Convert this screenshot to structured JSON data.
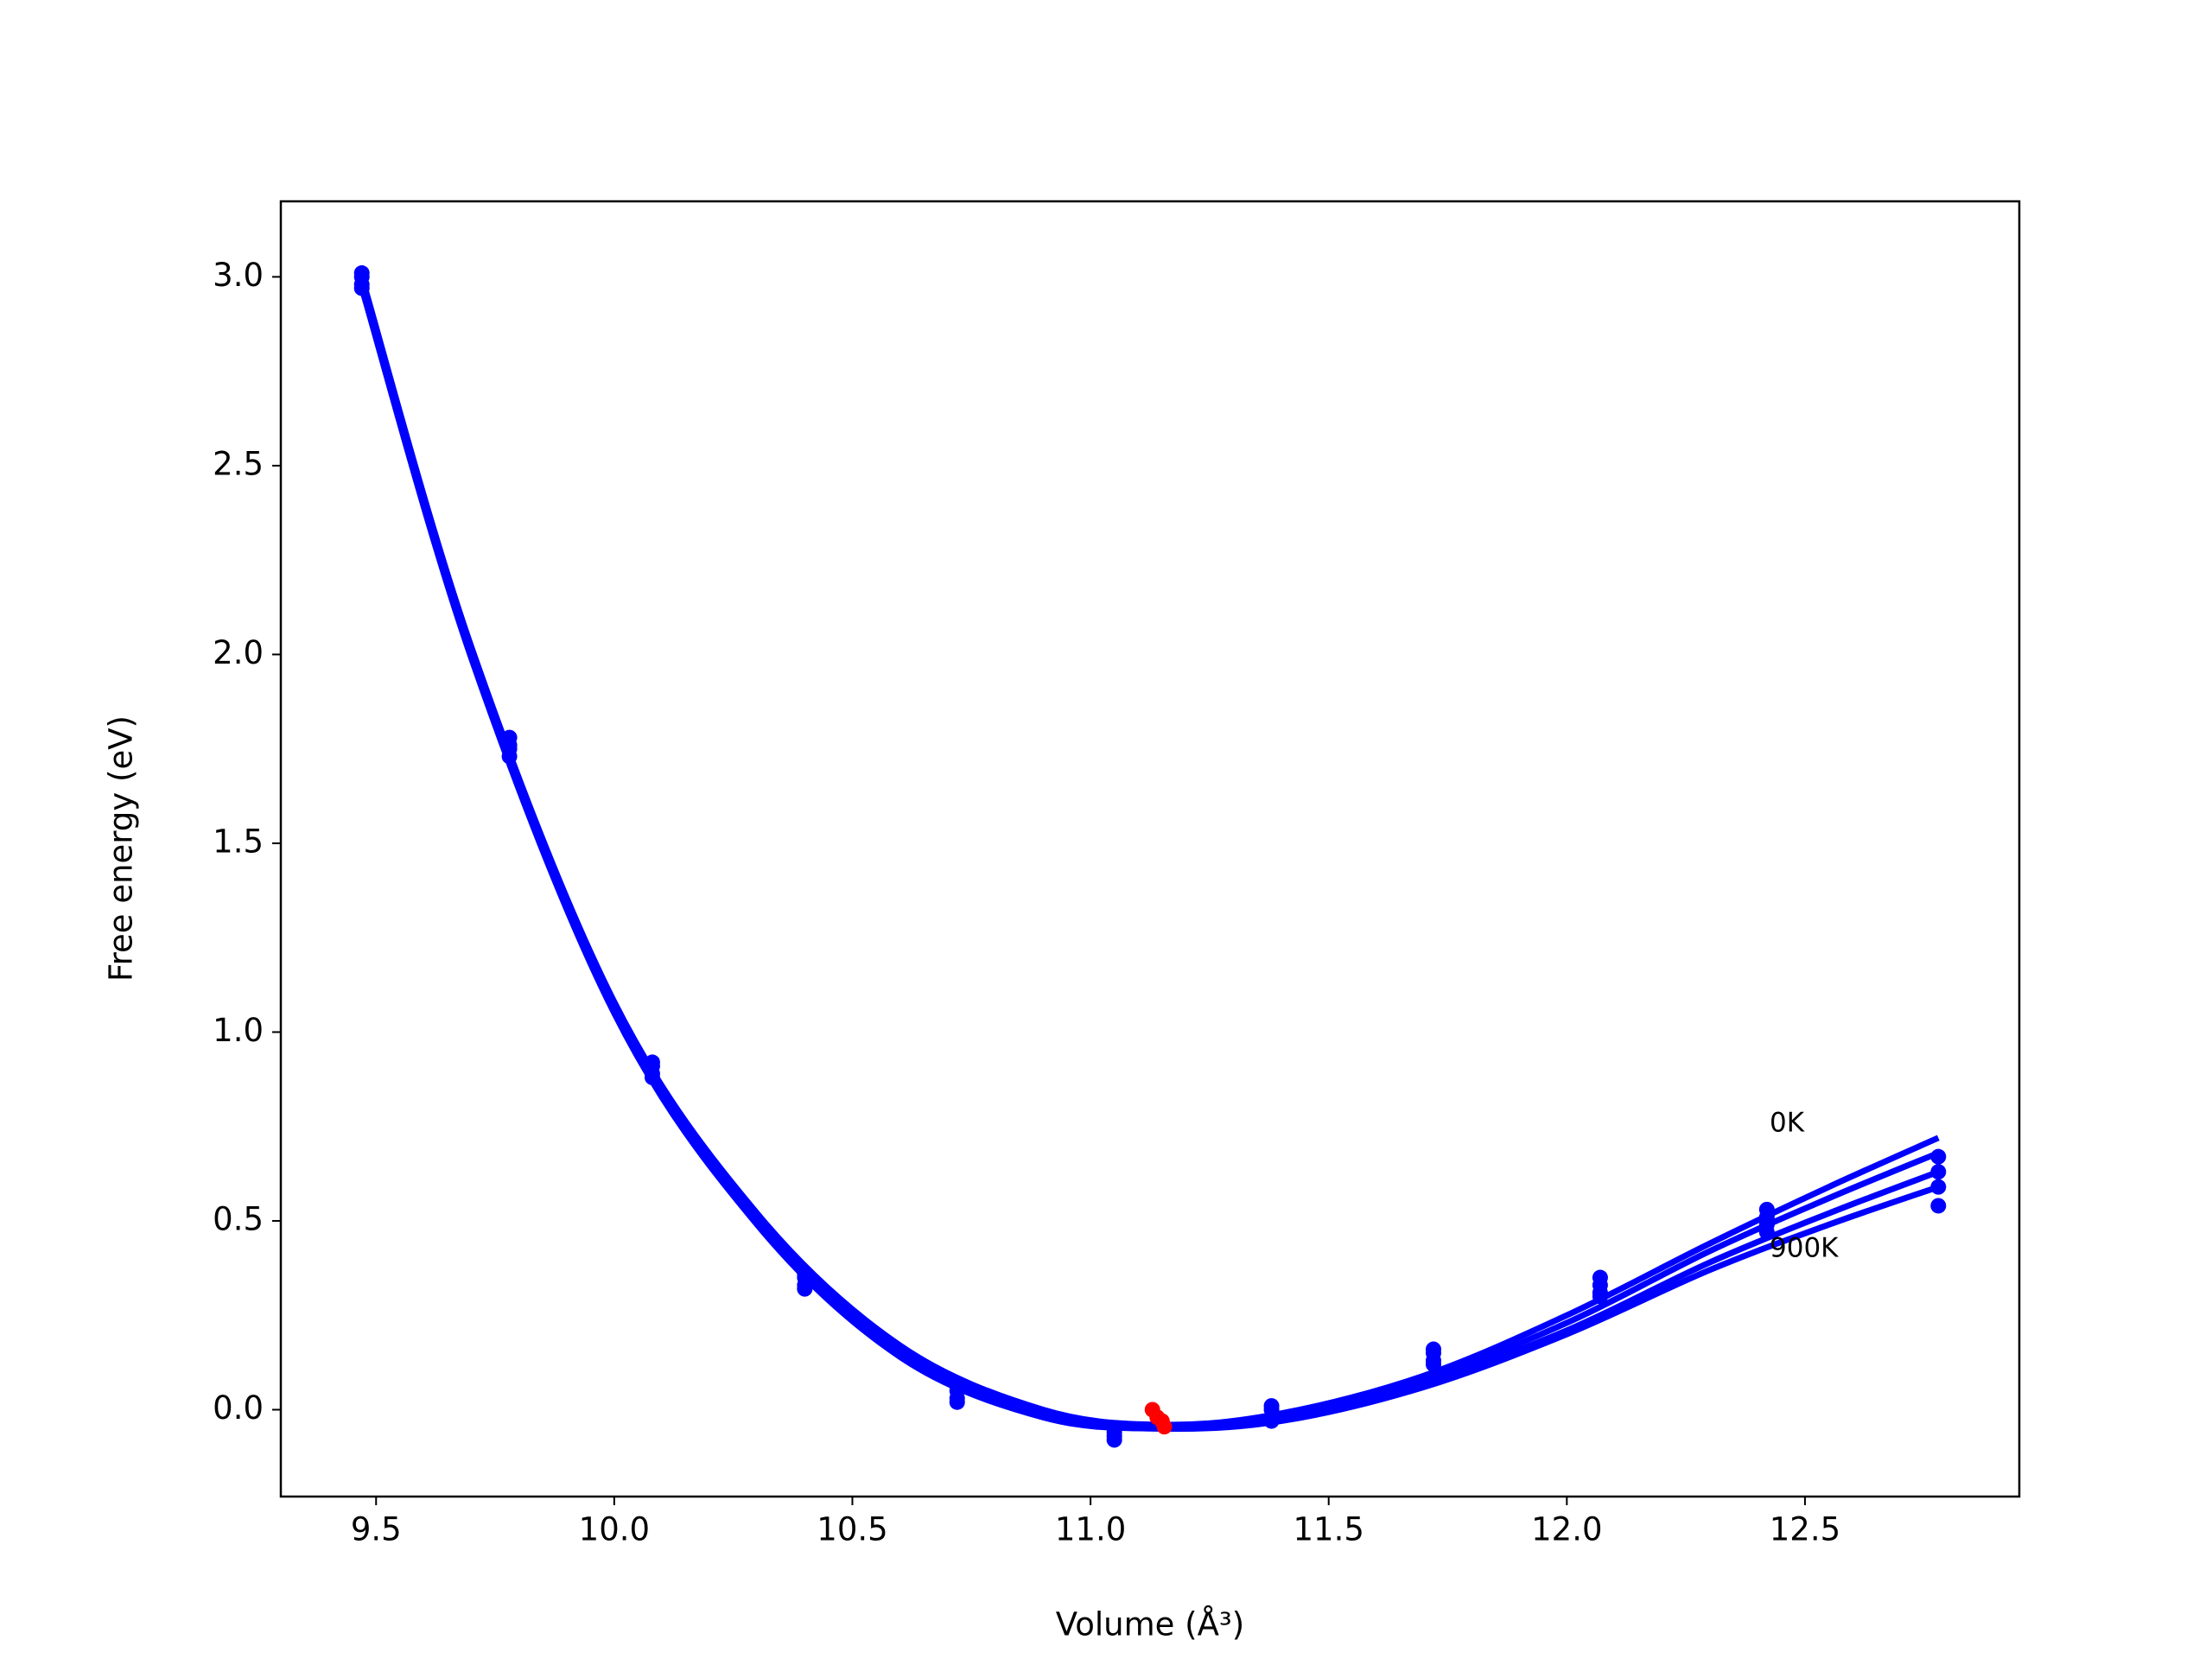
{
  "chart_data": {
    "type": "line",
    "xlabel": "Volume (Å³)",
    "ylabel": "Free energy (eV)",
    "xlim": [
      9.3,
      12.95
    ],
    "ylim": [
      -0.23,
      3.2
    ],
    "xticks": [
      9.5,
      {
        "value": 10,
        "label": "10.0"
      },
      10.5,
      {
        "value": 11,
        "label": "11.0"
      },
      11.5,
      {
        "value": 12,
        "label": "12.0"
      },
      12.5
    ],
    "yticks": [
      {
        "value": 0,
        "label": "0.0"
      },
      0.5,
      {
        "value": 1,
        "label": "1.0"
      },
      1.5,
      {
        "value": 2,
        "label": "2.0"
      },
      2.5,
      {
        "value": 3,
        "label": "3.0"
      }
    ],
    "annotations": [
      "0K",
      "900K"
    ],
    "series": [
      {
        "type": "line",
        "color": "#0000ff",
        "x": [
          9.47,
          9.7,
          10.0,
          10.3,
          10.6,
          10.9,
          11.15,
          11.4,
          11.7,
          12.0,
          12.3,
          12.55,
          12.78
        ],
        "values": [
          3.0,
          2.02,
          1.08,
          0.52,
          0.17,
          0.0,
          -0.04,
          -0.01,
          0.09,
          0.25,
          0.44,
          0.59,
          0.72
        ]
      },
      {
        "type": "line",
        "color": "#0000ff",
        "x": [
          9.47,
          9.7,
          10.0,
          10.3,
          10.6,
          10.9,
          11.15,
          11.4,
          11.7,
          12.0,
          12.3,
          12.55,
          12.78
        ],
        "values": [
          2.99,
          2.01,
          1.07,
          0.51,
          0.16,
          -0.01,
          -0.045,
          -0.02,
          0.08,
          0.23,
          0.42,
          0.56,
          0.68
        ]
      },
      {
        "type": "line",
        "color": "#0000ff",
        "x": [
          9.47,
          9.7,
          10.0,
          10.3,
          10.6,
          10.9,
          11.15,
          11.4,
          11.7,
          12.0,
          12.3,
          12.55,
          12.78
        ],
        "values": [
          2.98,
          2.0,
          1.06,
          0.5,
          0.15,
          -0.015,
          -0.05,
          -0.025,
          0.07,
          0.21,
          0.39,
          0.52,
          0.63
        ]
      },
      {
        "type": "line",
        "color": "#0000ff",
        "x": [
          9.47,
          9.7,
          10.0,
          10.3,
          10.6,
          10.9,
          11.15,
          11.4,
          11.7,
          12.0,
          12.3,
          12.55,
          12.78
        ],
        "values": [
          2.97,
          1.99,
          1.05,
          0.49,
          0.14,
          -0.02,
          -0.05,
          -0.03,
          0.06,
          0.2,
          0.37,
          0.49,
          0.59
        ]
      },
      {
        "type": "scatter",
        "color": "#0000ff",
        "x": [
          9.47,
          9.78,
          10.08,
          10.4,
          10.72,
          11.05,
          11.38,
          11.72,
          12.07,
          12.42,
          12.78
        ],
        "values": [
          3.01,
          1.78,
          0.92,
          0.36,
          0.06,
          -0.05,
          0.01,
          0.16,
          0.35,
          0.53,
          0.67
        ]
      },
      {
        "type": "scatter",
        "color": "#0000ff",
        "x": [
          9.47,
          9.78,
          10.08,
          10.4,
          10.72,
          11.05,
          11.38,
          11.72,
          12.07,
          12.42,
          12.78
        ],
        "values": [
          3.0,
          1.76,
          0.91,
          0.35,
          0.05,
          -0.06,
          0.0,
          0.15,
          0.33,
          0.51,
          0.63
        ]
      },
      {
        "type": "scatter",
        "color": "#0000ff",
        "x": [
          9.47,
          9.78,
          10.08,
          10.4,
          10.72,
          11.05,
          11.38,
          11.72,
          12.07,
          12.42,
          12.78
        ],
        "values": [
          2.98,
          1.75,
          0.89,
          0.33,
          0.03,
          -0.07,
          -0.02,
          0.13,
          0.31,
          0.49,
          0.59
        ]
      },
      {
        "type": "scatter",
        "color": "#0000ff",
        "x": [
          9.47,
          9.78,
          10.08,
          10.4,
          10.72,
          11.05,
          11.38,
          11.72,
          12.07,
          12.42,
          12.78
        ],
        "values": [
          2.97,
          1.73,
          0.88,
          0.32,
          0.02,
          -0.08,
          -0.03,
          0.12,
          0.3,
          0.47,
          0.54
        ]
      },
      {
        "type": "scatter",
        "color": "#ff0000",
        "x": [
          11.13,
          11.14,
          11.15,
          11.155
        ],
        "values": [
          0.0,
          -0.02,
          -0.03,
          -0.045
        ]
      }
    ]
  }
}
